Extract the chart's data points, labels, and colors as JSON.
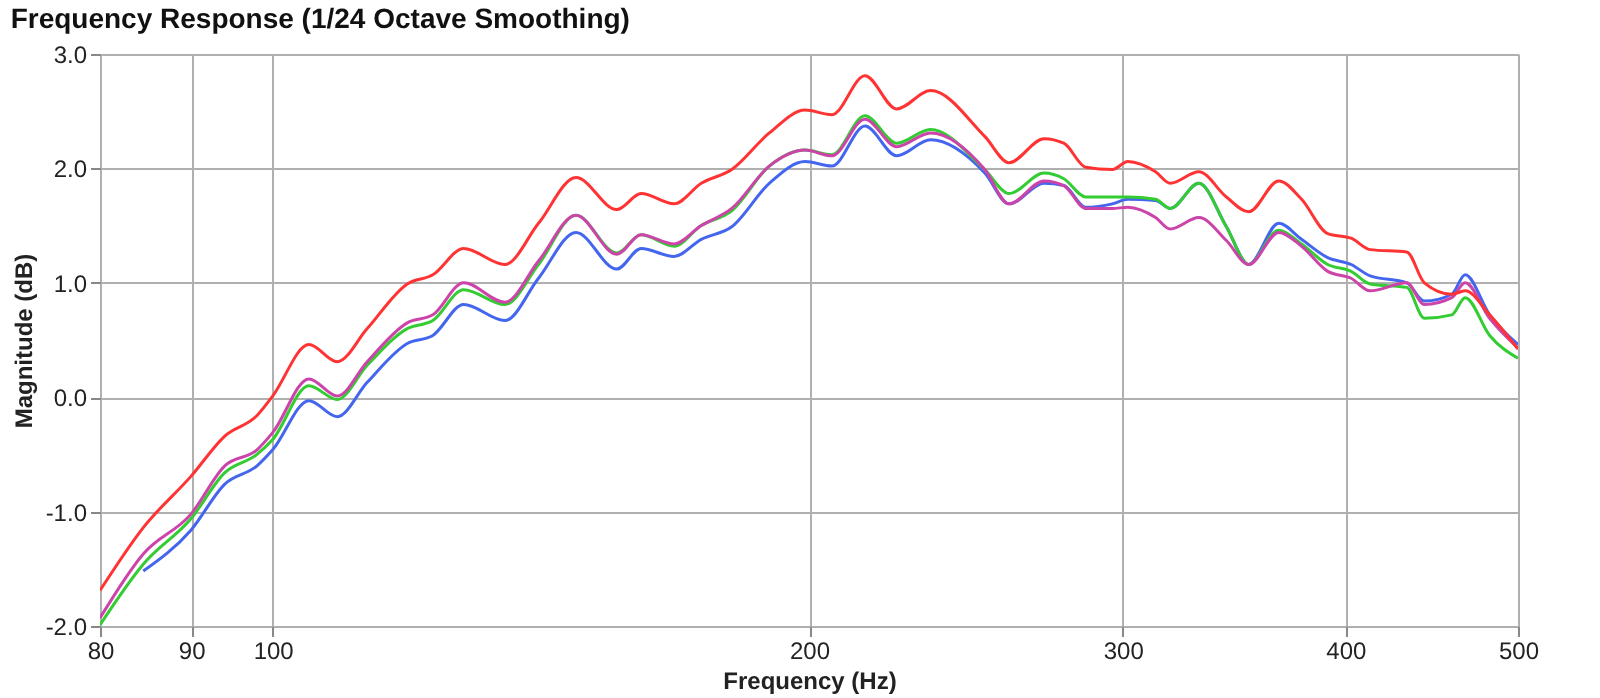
{
  "chart_data": {
    "type": "line",
    "title": "Frequency Response (1/24 Octave Smoothing)",
    "xlabel": "Frequency (Hz)",
    "ylabel": "Magnitude (dB)",
    "log": "x",
    "grid": true,
    "legend": false,
    "line_style": "solid",
    "marker": "none",
    "xlim": [
      80,
      500
    ],
    "xticks": [
      80,
      90,
      100,
      200,
      300,
      400,
      500
    ],
    "ylim": [
      -2.0,
      3.0
    ],
    "yticks": [
      {
        "value": -2,
        "label": "-2.0"
      },
      {
        "value": -1,
        "label": "-1.0"
      },
      {
        "value": 0,
        "label": "0.0"
      },
      {
        "value": 1,
        "label": "1.0"
      },
      {
        "value": 2,
        "label": "2.0"
      },
      {
        "value": 3,
        "label": "3.0"
      }
    ],
    "x": [
      80,
      84.6,
      90,
      94,
      98,
      100,
      104.8,
      108.7,
      113,
      119,
      123,
      128,
      135,
      141,
      148,
      156,
      161,
      168,
      174,
      181,
      190,
      199,
      206,
      215,
      224,
      234,
      251,
      259,
      271,
      278,
      286,
      296,
      302,
      313,
      319,
      331,
      343,
      353,
      367,
      378,
      391,
      403,
      413,
      433,
      443,
      459,
      467,
      482,
      500
    ],
    "series": [
      {
        "color": "#4466ee",
        "values": [
          null,
          -1.52,
          -1.16,
          -0.76,
          -0.6,
          -0.46,
          -0.03,
          -0.17,
          0.13,
          0.47,
          0.54,
          0.81,
          0.67,
          1.04,
          1.44,
          1.12,
          1.3,
          1.23,
          1.38,
          1.49,
          1.87,
          2.06,
          2.02,
          2.37,
          2.11,
          2.25,
          1.96,
          1.69,
          1.87,
          1.85,
          1.66,
          1.69,
          1.73,
          1.72,
          1.65,
          1.87,
          1.49,
          1.16,
          1.52,
          1.38,
          1.22,
          1.16,
          1.06,
          1.0,
          0.84,
          0.9,
          1.07,
          0.72,
          0.46
        ]
      },
      {
        "color": "#33cc33",
        "values": [
          -1.99,
          -1.46,
          -1.06,
          -0.66,
          -0.5,
          -0.37,
          0.1,
          -0.02,
          0.28,
          0.6,
          0.67,
          0.94,
          0.81,
          1.16,
          1.59,
          1.26,
          1.42,
          1.32,
          1.5,
          1.63,
          2.02,
          2.16,
          2.12,
          2.46,
          2.22,
          2.34,
          1.99,
          1.78,
          1.96,
          1.91,
          1.75,
          1.75,
          1.75,
          1.73,
          1.65,
          1.87,
          1.49,
          1.16,
          1.46,
          1.34,
          1.16,
          1.1,
          0.99,
          0.96,
          0.69,
          0.72,
          0.87,
          0.54,
          0.34
        ]
      },
      {
        "color": "#cc44aa",
        "values": [
          -1.93,
          -1.37,
          -1.02,
          -0.6,
          -0.46,
          -0.31,
          0.16,
          0.01,
          0.31,
          0.65,
          0.72,
          1.0,
          0.83,
          1.19,
          1.59,
          1.25,
          1.42,
          1.34,
          1.5,
          1.65,
          2.02,
          2.16,
          2.11,
          2.43,
          2.19,
          2.31,
          1.99,
          1.69,
          1.89,
          1.85,
          1.65,
          1.65,
          1.66,
          1.57,
          1.47,
          1.57,
          1.37,
          1.16,
          1.44,
          1.32,
          1.1,
          1.04,
          0.93,
          1.0,
          0.81,
          0.87,
          1.0,
          0.69,
          0.43
        ]
      },
      {
        "color": "#ff3333",
        "values": [
          -1.69,
          -1.14,
          -0.69,
          -0.34,
          -0.16,
          0.01,
          0.46,
          0.31,
          0.6,
          0.99,
          1.07,
          1.3,
          1.16,
          1.52,
          1.92,
          1.64,
          1.78,
          1.69,
          1.87,
          1.99,
          2.31,
          2.51,
          2.47,
          2.81,
          2.52,
          2.68,
          2.28,
          2.05,
          2.26,
          2.22,
          2.01,
          1.99,
          2.06,
          1.97,
          1.87,
          1.97,
          1.75,
          1.62,
          1.89,
          1.73,
          1.43,
          1.39,
          1.29,
          1.27,
          1.0,
          0.9,
          0.93,
          0.72,
          0.42
        ]
      }
    ]
  }
}
